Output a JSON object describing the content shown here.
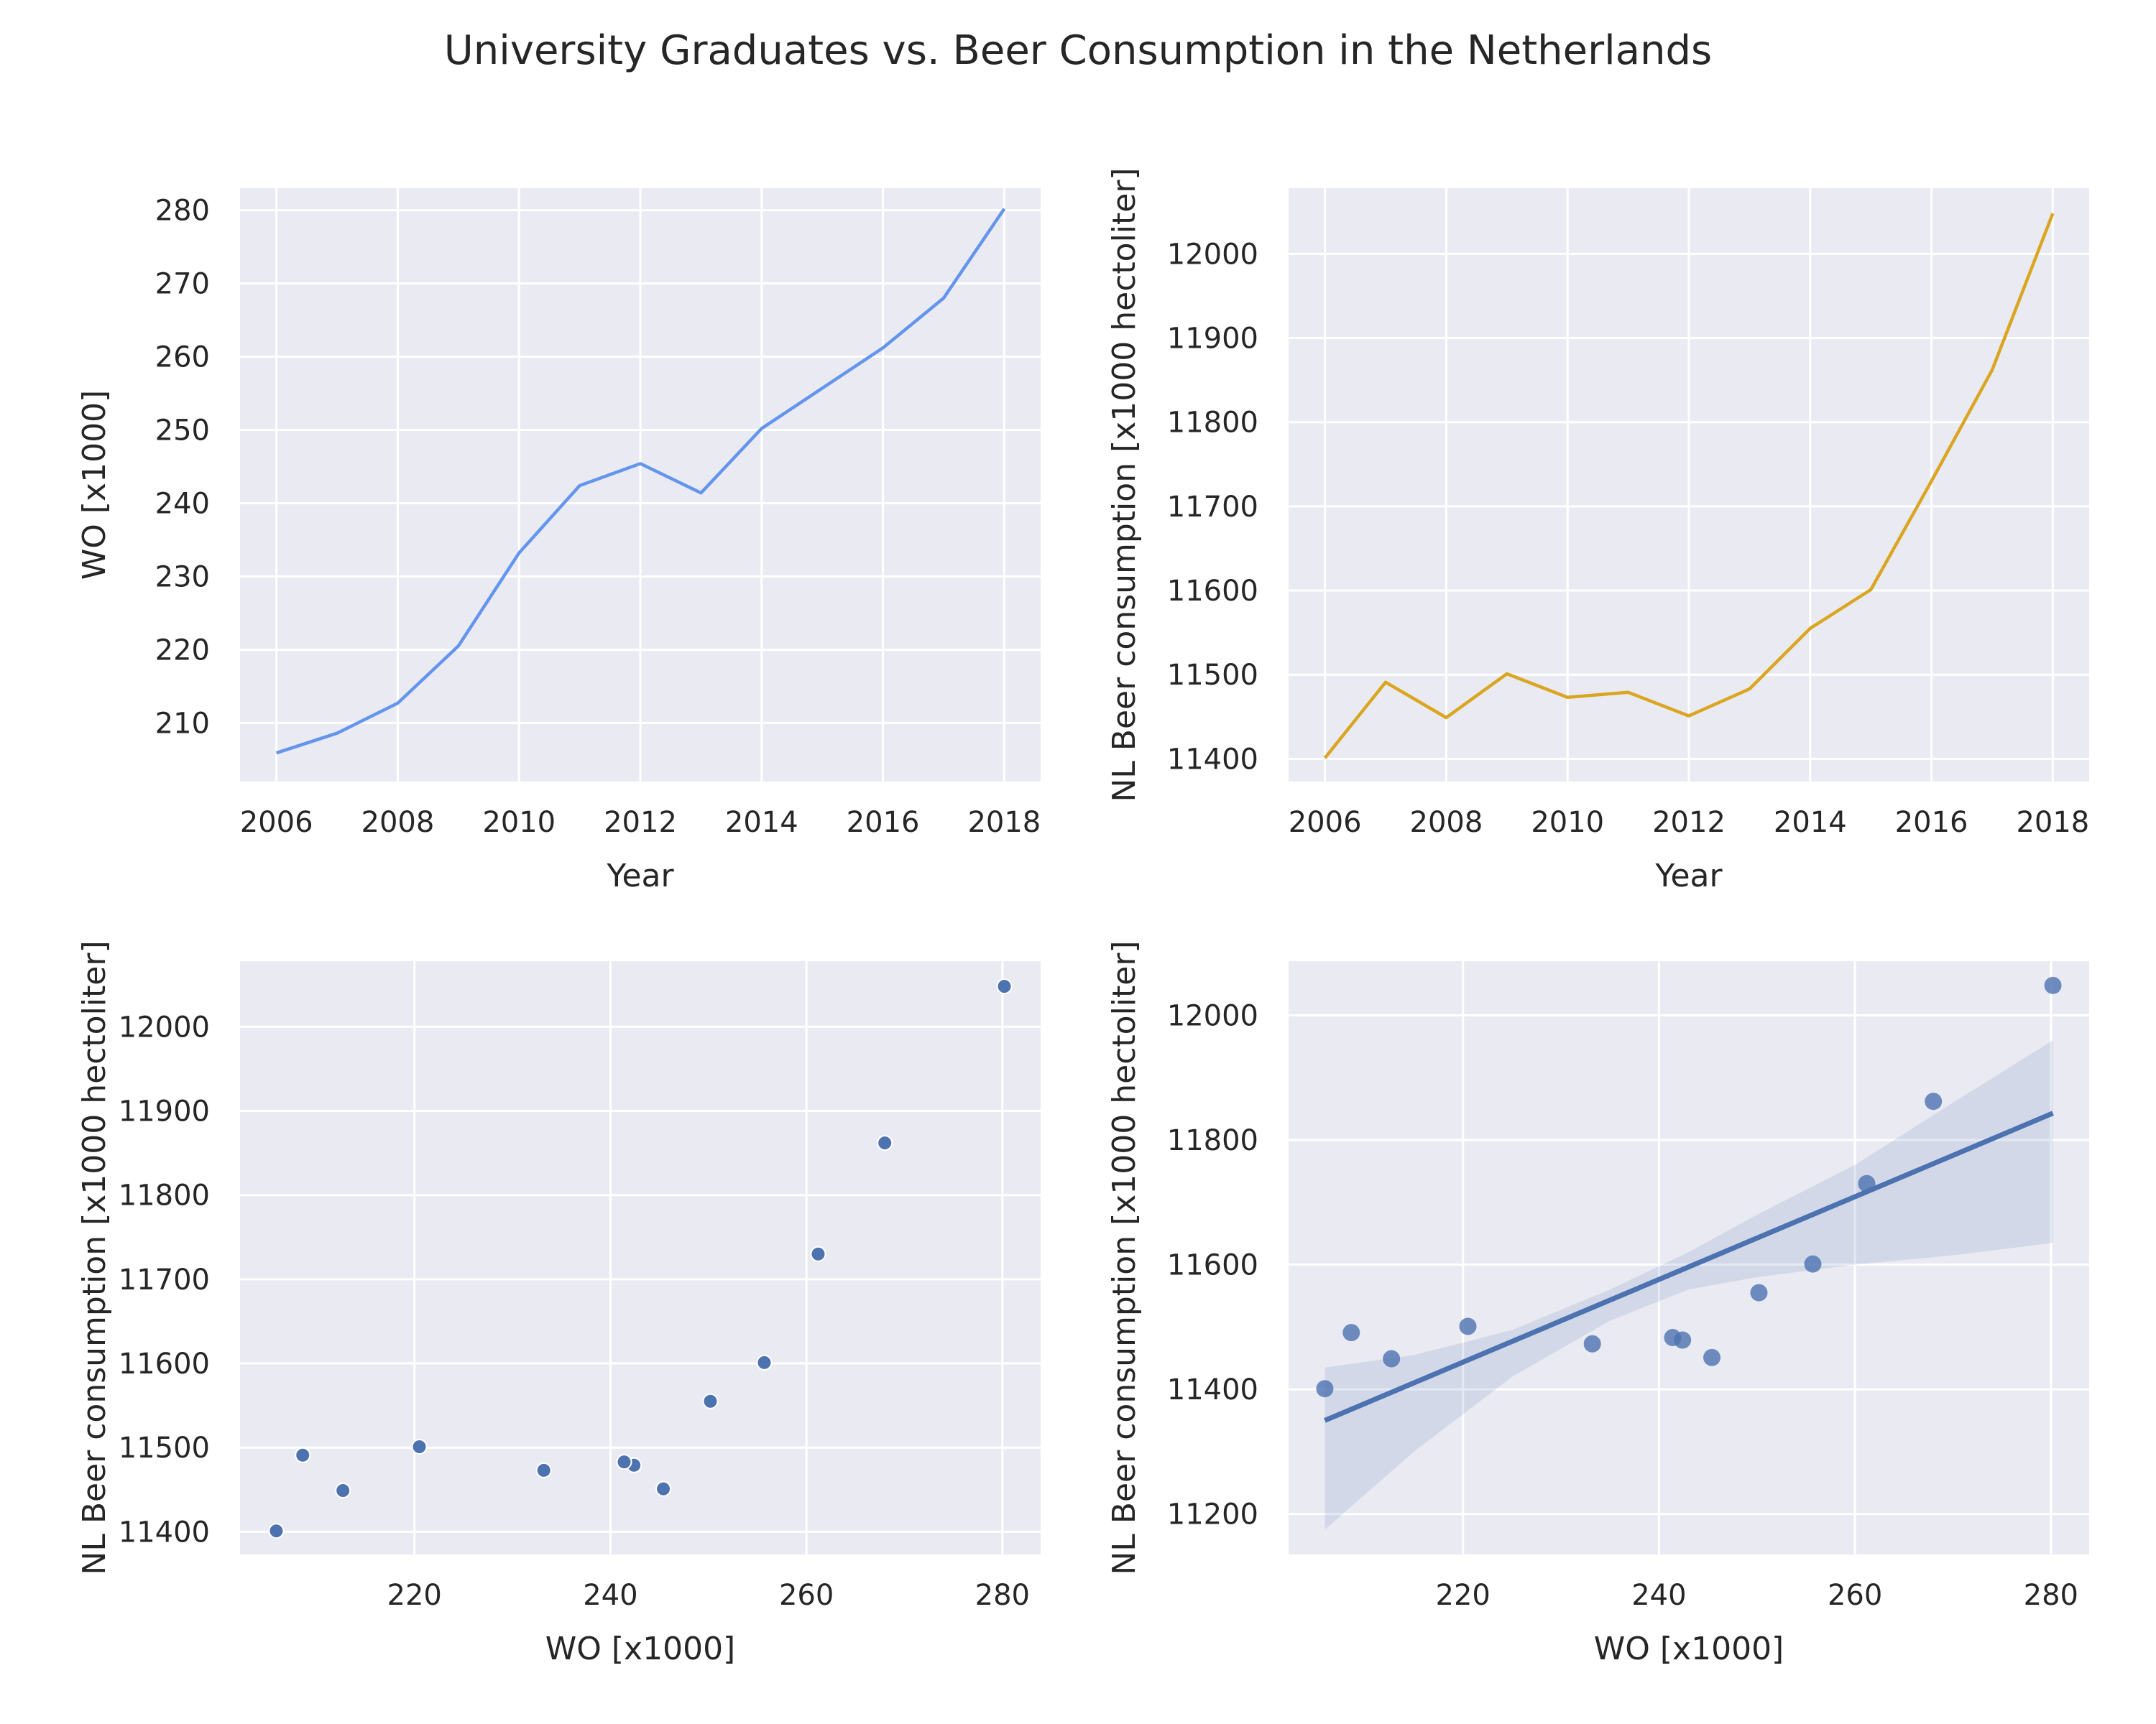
{
  "figure": {
    "title": "University Graduates vs. Beer Consumption in the Netherlands"
  },
  "chart_data": [
    {
      "type": "line",
      "xlabel": "Year",
      "ylabel": "WO [x1000]",
      "xlim": [
        2005.4,
        2018.6
      ],
      "ylim": [
        202,
        283
      ],
      "xticks": [
        2006,
        2008,
        2010,
        2012,
        2014,
        2016,
        2018
      ],
      "yticks": [
        210,
        220,
        230,
        240,
        250,
        260,
        270,
        280
      ],
      "grid": true,
      "color": "#6495ED",
      "x": [
        2006,
        2007,
        2008,
        2009,
        2010,
        2011,
        2012,
        2013,
        2014,
        2015,
        2016,
        2017,
        2018
      ],
      "y": [
        205.9,
        208.6,
        212.7,
        220.5,
        233.2,
        242.4,
        245.4,
        241.4,
        250.2,
        255.7,
        261.2,
        268.0,
        280.2
      ]
    },
    {
      "type": "line",
      "xlabel": "Year",
      "ylabel": "NL Beer consumption [x1000 hectoliter]",
      "xlim": [
        2005.4,
        2018.6
      ],
      "ylim": [
        11373,
        12078
      ],
      "xticks": [
        2006,
        2008,
        2010,
        2012,
        2014,
        2016,
        2018
      ],
      "yticks": [
        11400,
        11500,
        11600,
        11700,
        11800,
        11900,
        12000
      ],
      "grid": true,
      "color": "#DAA520",
      "x": [
        2006,
        2007,
        2008,
        2009,
        2010,
        2011,
        2012,
        2013,
        2014,
        2015,
        2016,
        2017,
        2018
      ],
      "y": [
        11401,
        11491,
        11449,
        11501,
        11473,
        11479,
        11451,
        11483,
        11555,
        11601,
        11730,
        11862,
        12048
      ]
    },
    {
      "type": "scatter",
      "xlabel": "WO [x1000]",
      "ylabel": "NL Beer consumption [x1000 hectoliter]",
      "xlim": [
        202.2,
        283.9
      ],
      "ylim": [
        11373,
        12078
      ],
      "xticks": [
        220,
        240,
        260,
        280
      ],
      "yticks": [
        11400,
        11500,
        11600,
        11700,
        11800,
        11900,
        12000
      ],
      "grid": true,
      "color": "#4C72B0",
      "x": [
        205.9,
        208.6,
        212.7,
        220.5,
        233.2,
        242.4,
        245.4,
        241.4,
        250.2,
        255.7,
        261.2,
        268.0,
        280.2
      ],
      "y": [
        11401,
        11491,
        11449,
        11501,
        11473,
        11479,
        11451,
        11483,
        11555,
        11601,
        11730,
        11862,
        12048
      ]
    },
    {
      "type": "scatter",
      "xlabel": "WO [x1000]",
      "ylabel": "NL Beer consumption [x1000 hectoliter]",
      "xlim": [
        202.2,
        283.9
      ],
      "ylim": [
        11135,
        12087
      ],
      "xticks": [
        220,
        240,
        260,
        280
      ],
      "yticks": [
        11200,
        11400,
        11600,
        11800,
        12000
      ],
      "grid": true,
      "color": "#4C72B0",
      "x": [
        205.9,
        208.6,
        212.7,
        220.5,
        233.2,
        242.4,
        245.4,
        241.4,
        250.2,
        255.7,
        261.2,
        268.0,
        280.2
      ],
      "y": [
        11401,
        11491,
        11449,
        11501,
        11473,
        11479,
        11451,
        11483,
        11555,
        11601,
        11730,
        11862,
        12048
      ],
      "regression": {
        "x": [
          205.9,
          280.2
        ],
        "y": [
          11350,
          11843
        ]
      },
      "confidence_band": {
        "x": [
          205.9,
          215,
          225,
          235,
          243,
          250,
          260,
          270,
          280.2
        ],
        "lower": [
          11175,
          11300,
          11420,
          11510,
          11560,
          11580,
          11600,
          11615,
          11635
        ],
        "upper": [
          11435,
          11455,
          11495,
          11560,
          11620,
          11680,
          11760,
          11860,
          11960
        ]
      }
    }
  ]
}
